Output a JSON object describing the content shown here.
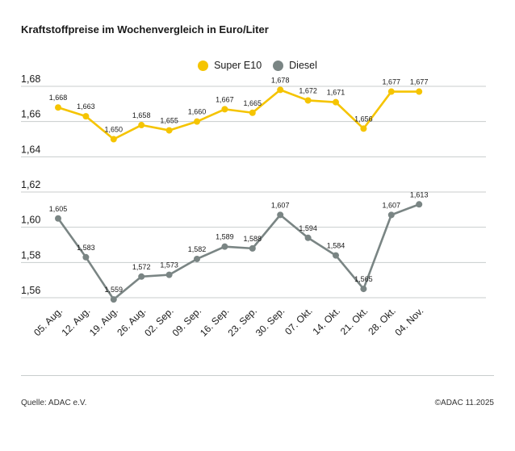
{
  "title": "Kraftstoffpreise im Wochenvergleich in Euro/Liter",
  "source": "Quelle: ADAC e.V.",
  "copyright": "©ADAC 11.2025",
  "colors": {
    "super_e10": "#f5c400",
    "diesel": "#7a8584",
    "grid": "#c8cdcd"
  },
  "chart_data": {
    "type": "line",
    "categories": [
      "05. Aug.",
      "12. Aug.",
      "19. Aug.",
      "26. Aug.",
      "02. Sep.",
      "09. Sep.",
      "16. Sep.",
      "23. Sep.",
      "30. Sep.",
      "07. Okt.",
      "14. Okt.",
      "21. Okt.",
      "28. Okt.",
      "04. Nov."
    ],
    "series": [
      {
        "name": "Super E10",
        "color": "#f5c400",
        "values": [
          1.668,
          1.663,
          1.65,
          1.658,
          1.655,
          1.66,
          1.667,
          1.665,
          1.678,
          1.672,
          1.671,
          1.656,
          1.677,
          1.677
        ],
        "labels": [
          "1,668",
          "1,663",
          "1,650",
          "1,658",
          "1,655",
          "1,660",
          "1,667",
          "1,665",
          "1,678",
          "1,672",
          "1,671",
          "1,656",
          "1,677",
          "1,677"
        ]
      },
      {
        "name": "Diesel",
        "color": "#7a8584",
        "values": [
          1.605,
          1.583,
          1.559,
          1.572,
          1.573,
          1.582,
          1.589,
          1.588,
          1.607,
          1.594,
          1.584,
          1.565,
          1.607,
          1.613
        ],
        "labels": [
          "1,605",
          "1,583",
          "1,559",
          "1,572",
          "1,573",
          "1,582",
          "1,589",
          "1,588",
          "1,607",
          "1,594",
          "1,584",
          "1,565",
          "1,607",
          "1,613"
        ]
      }
    ],
    "ylim": [
      1.56,
      1.68
    ],
    "yticks": [
      1.56,
      1.58,
      1.6,
      1.62,
      1.64,
      1.66,
      1.68
    ],
    "ytick_labels": [
      "1,56",
      "1,58",
      "1,60",
      "1,62",
      "1,64",
      "1,66",
      "1,68"
    ],
    "xlabel": "",
    "ylabel": "",
    "grid": true,
    "legend_position": "top-center"
  }
}
